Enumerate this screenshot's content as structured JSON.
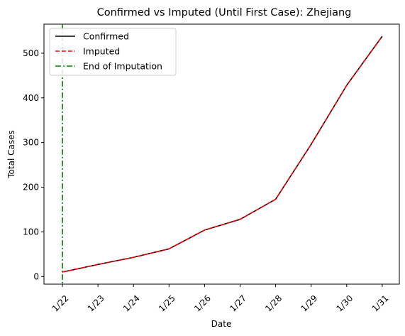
{
  "chart_data": {
    "type": "line",
    "title": "Confirmed vs Imputed (Until First Case): Zhejiang",
    "xlabel": "Date",
    "ylabel": "Total Cases",
    "categories": [
      "1/22",
      "1/23",
      "1/24",
      "1/25",
      "1/26",
      "1/27",
      "1/28",
      "1/29",
      "1/30",
      "1/31"
    ],
    "series": [
      {
        "name": "Confirmed",
        "color": "#000000",
        "style": "solid",
        "values": [
          10,
          27,
          43,
          62,
          104,
          128,
          173,
          296,
          428,
          538
        ]
      },
      {
        "name": "Imputed",
        "color": "#ff0000",
        "style": "dashed",
        "values": [
          10,
          27,
          43,
          62,
          104,
          128,
          173,
          296,
          428,
          538
        ]
      }
    ],
    "vline": {
      "name": "End of Imputation",
      "color": "#008000",
      "style": "dashdot",
      "x": "1/22"
    },
    "yticks": [
      0,
      100,
      200,
      300,
      400,
      500
    ],
    "ylim": [
      -17,
      565
    ],
    "legend": "upper-left",
    "grid": false
  }
}
